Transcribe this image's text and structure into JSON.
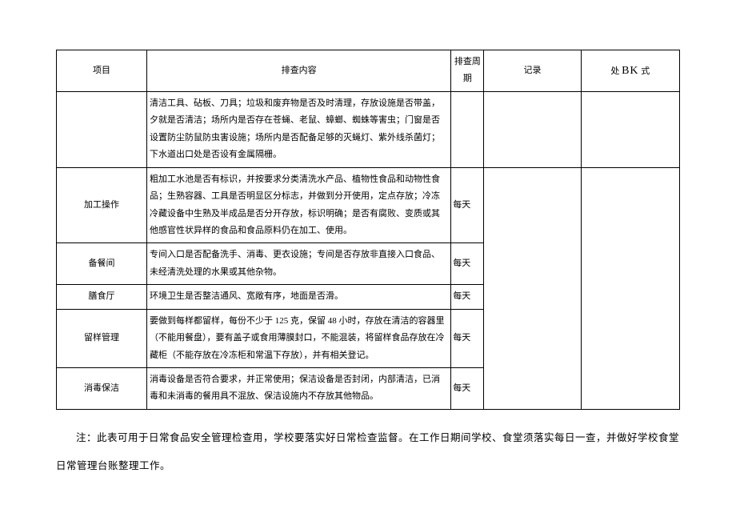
{
  "headers": {
    "item": "项目",
    "content": "排查内容",
    "cycle": "排查周期",
    "record": "记录",
    "method_prefix": "处 ",
    "method_bk": "BK",
    "method_suffix": " 式"
  },
  "rows": [
    {
      "item": "",
      "content": "清洁工具、砧板、刀具；垃圾和废弃物是否及时清理，存放设施是否带盖，夕就是否清洁；场所内是否存在苍蝇、老鼠、蟑螂、蜘蛛等害虫；门窗是否设置防尘防鼠防虫害设施；场所内是否配备足够的灭蝇灯、紫外线杀菌灯；下水道出口处是否设有金属隔栅。",
      "cycle": "",
      "record": "",
      "method": ""
    },
    {
      "item": "加工操作",
      "content": "粗加工水池是否有标识，并按要求分类清洗水产品、植物性食品和动物性食品；生熟容器、工具是否明显区分标志，并做到分开使用，定点存放；冷冻冷藏设备中生熟及半成品是否分开存放，标识明确；是否有腐败、变质或其他感官性状异样的食品和食品原料仍在加工、使用。",
      "cycle": "每天",
      "record": "",
      "method": ""
    },
    {
      "item": "备餐间",
      "content": "专间入口是否配备洗手、消毒、更衣设施；专间是否存放非直接入口食品、未经清洗处理的水果或其他杂物。",
      "cycle": "每天",
      "record": "",
      "method": ""
    },
    {
      "item": "膳食厅",
      "content": "环境卫生是否整洁通风、宽敞有序，地面是否滑。",
      "cycle": "每天",
      "record": "",
      "method": ""
    },
    {
      "item": "留样管理",
      "content": "要做到每样都留样，每份不少于 125 克，保留 48 小时，存放在清洁的容器里（不能用餐盘），要有盖子或食用薄膜封口，不能混装，将留样食品存放在冷藏柜（不能存放在冷冻柜和常温下存放），并有相关登记。",
      "cycle": "每天",
      "record": "",
      "method": ""
    },
    {
      "item": "消毒保洁",
      "content": "消毒设备是否符合要求，并正常使用；保洁设备是否封闭，内部清洁，已消毒和未消毒的餐用具不混放、保洁设施内不存放其他物品。",
      "cycle": "每天",
      "record": "",
      "method": ""
    }
  ],
  "note": "注：此表可用于日常食品安全管理检查用，学校要落实好日常检查监督。在工作日期间学校、食堂须落实每日一查，并做好学校食堂日常管理台账整理工作。",
  "styles": {
    "background_color": "#ffffff",
    "border_color": "#000000",
    "text_color": "#000000",
    "font_family": "SimSun",
    "cell_font_size": 11,
    "note_font_size": 12.5,
    "bk_font_size": 14,
    "col_widths": {
      "item": 110,
      "content": 370,
      "cycle": 40,
      "record": 118,
      "method": 120
    }
  }
}
